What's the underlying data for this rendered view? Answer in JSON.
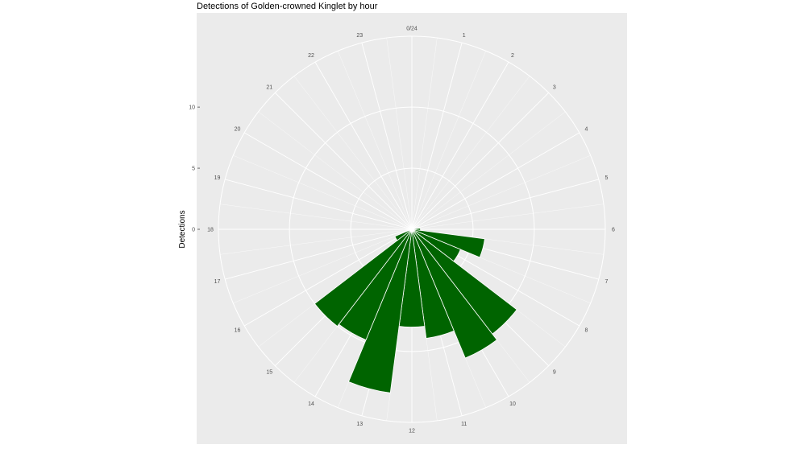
{
  "chart_data": {
    "type": "bar",
    "coord": "polar",
    "title": "Detections of Golden-crowned Kinglet by hour",
    "xlabel": "",
    "ylabel": "Detections",
    "categories": [
      "0/24",
      "1",
      "2",
      "3",
      "4",
      "5",
      "6",
      "7",
      "8",
      "9",
      "10",
      "11",
      "12",
      "13",
      "14",
      "15",
      "16",
      "17",
      "18",
      "19",
      "20",
      "21",
      "22",
      "23"
    ],
    "values": [
      0.1,
      0,
      0,
      0,
      0,
      0,
      0.7,
      6.0,
      4.3,
      10.8,
      11.4,
      9.0,
      8.0,
      13.5,
      9.8,
      10.0,
      1.5,
      0.2,
      0,
      0,
      0,
      0,
      0,
      0
    ],
    "y_ticks": [
      0,
      5,
      10
    ],
    "ylim": [
      0,
      15.8
    ],
    "grid": true,
    "bar_color": "#006400",
    "panel_color": "#ebebeb",
    "grid_color": "#ffffff"
  }
}
